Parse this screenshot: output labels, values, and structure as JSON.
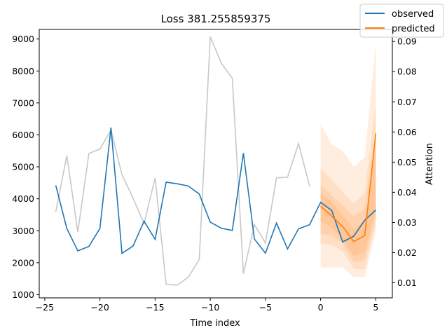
{
  "chart_data": {
    "type": "line",
    "title": "Loss 381.255859375",
    "xlabel": "Time index",
    "ylabel": "",
    "y2label": "Attention",
    "xlim": [
      -25.5,
      6.5
    ],
    "ylim": [
      900,
      9300
    ],
    "y2lim": [
      0.005,
      0.094
    ],
    "xticks": [
      -25,
      -20,
      -15,
      -10,
      -5,
      0,
      5
    ],
    "yticks": [
      1000,
      2000,
      3000,
      4000,
      5000,
      6000,
      7000,
      8000,
      9000
    ],
    "y2ticks": [
      0.01,
      0.02,
      0.03,
      0.04,
      0.05,
      0.06,
      0.07,
      0.08,
      0.09
    ],
    "legend_position": "top-right",
    "colors": {
      "observed": "#1f77b4",
      "predicted": "#ff7f0e",
      "attention": "#c8c8c8",
      "band": "#ff7f0e"
    },
    "series": [
      {
        "name": "observed",
        "x": [
          -24,
          -23,
          -22,
          -21,
          -20,
          -19,
          -18,
          -17,
          -16,
          -15,
          -14,
          -13,
          -12,
          -11,
          -10,
          -9,
          -8,
          -7,
          -6,
          -5,
          -4,
          -3,
          -2,
          -1,
          0,
          1,
          2,
          3,
          4,
          5
        ],
        "values": [
          4420,
          3070,
          2370,
          2510,
          3070,
          6230,
          2290,
          2520,
          3300,
          2730,
          4520,
          4470,
          4400,
          4150,
          3270,
          3080,
          3010,
          5430,
          2740,
          2300,
          3240,
          2430,
          3060,
          3190,
          3890,
          3640,
          2650,
          2830,
          3330,
          3650
        ]
      },
      {
        "name": "predicted",
        "x": [
          0,
          1,
          2,
          3,
          4,
          5
        ],
        "values": [
          3770,
          3460,
          3130,
          2660,
          2850,
          6040
        ]
      }
    ],
    "attention": {
      "x": [
        -24,
        -23,
        -22,
        -21,
        -20,
        -19,
        -18,
        -17,
        -16,
        -15,
        -14,
        -13,
        -12,
        -11,
        -10,
        -9,
        -8,
        -7,
        -6,
        -5,
        -4,
        -3,
        -2,
        -1
      ],
      "values": [
        0.0335,
        0.0522,
        0.0268,
        0.0529,
        0.0543,
        0.0607,
        0.0458,
        0.0381,
        0.0296,
        0.0448,
        0.0095,
        0.0092,
        0.0118,
        0.0177,
        0.0916,
        0.0828,
        0.0778,
        0.013,
        0.0293,
        0.0232,
        0.0448,
        0.045,
        0.0562,
        0.042
      ]
    },
    "prediction_bands": {
      "x": [
        0,
        1,
        2,
        3,
        4,
        5
      ],
      "quantiles": [
        {
          "lower": [
            1850,
            1850,
            1850,
            1550,
            1550,
            3000
          ],
          "upper": [
            6350,
            5700,
            5500,
            5000,
            5300,
            8900
          ]
        },
        {
          "lower": [
            2600,
            2550,
            2350,
            1800,
            1800,
            3200
          ],
          "upper": [
            4950,
            4600,
            4200,
            3850,
            4200,
            7000
          ]
        },
        {
          "lower": [
            2900,
            2850,
            2600,
            2000,
            2100,
            3400
          ],
          "upper": [
            4450,
            4100,
            3800,
            3450,
            3700,
            6200
          ]
        },
        {
          "lower": [
            3300,
            3100,
            2750,
            2200,
            2350,
            3600
          ],
          "upper": [
            4200,
            3900,
            3500,
            3050,
            3300,
            5600
          ]
        }
      ]
    }
  }
}
